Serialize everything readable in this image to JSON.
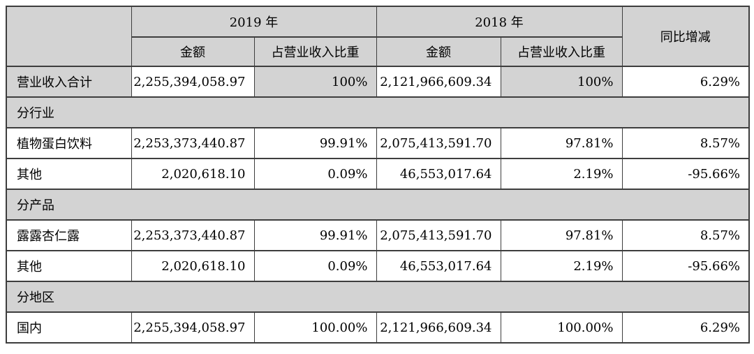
{
  "table": {
    "title_semantic": "营业收入构成表",
    "header": {
      "corner": "",
      "year_2019": "2019 年",
      "year_2018": "2018 年",
      "yoy": "同比增减",
      "amount": "金额",
      "share": "占营业收入比重"
    },
    "rows": [
      {
        "type": "data-shaded",
        "label": "营业收入合计",
        "a2019": "2,255,394,058.97",
        "s2019": "100%",
        "a2018": "2,121,966,609.34",
        "s2018": "100%",
        "yoy": "6.29%"
      },
      {
        "type": "section",
        "label": "分行业"
      },
      {
        "type": "data",
        "label": "植物蛋白饮料",
        "a2019": "2,253,373,440.87",
        "s2019": "99.91%",
        "a2018": "2,075,413,591.70",
        "s2018": "97.81%",
        "yoy": "8.57%"
      },
      {
        "type": "data",
        "label": "其他",
        "a2019": "2,020,618.10",
        "s2019": "0.09%",
        "a2018": "46,553,017.64",
        "s2018": "2.19%",
        "yoy": "-95.66%"
      },
      {
        "type": "section",
        "label": "分产品"
      },
      {
        "type": "data",
        "label": "露露杏仁露",
        "a2019": "2,253,373,440.87",
        "s2019": "99.91%",
        "a2018": "2,075,413,591.70",
        "s2018": "97.81%",
        "yoy": "8.57%"
      },
      {
        "type": "data",
        "label": "其他",
        "a2019": "2,020,618.10",
        "s2019": "0.09%",
        "a2018": "46,553,017.64",
        "s2018": "2.19%",
        "yoy": "-95.66%"
      },
      {
        "type": "section",
        "label": "分地区"
      },
      {
        "type": "data",
        "label": "国内",
        "a2019": "2,255,394,058.97",
        "s2019": "100.00%",
        "a2018": "2,121,966,609.34",
        "s2018": "100.00%",
        "yoy": "6.29%"
      }
    ],
    "colors": {
      "shaded_cell": "#d3d3d3",
      "border": "#3d3d3d",
      "text": "#000000",
      "background": "#ffffff"
    }
  }
}
